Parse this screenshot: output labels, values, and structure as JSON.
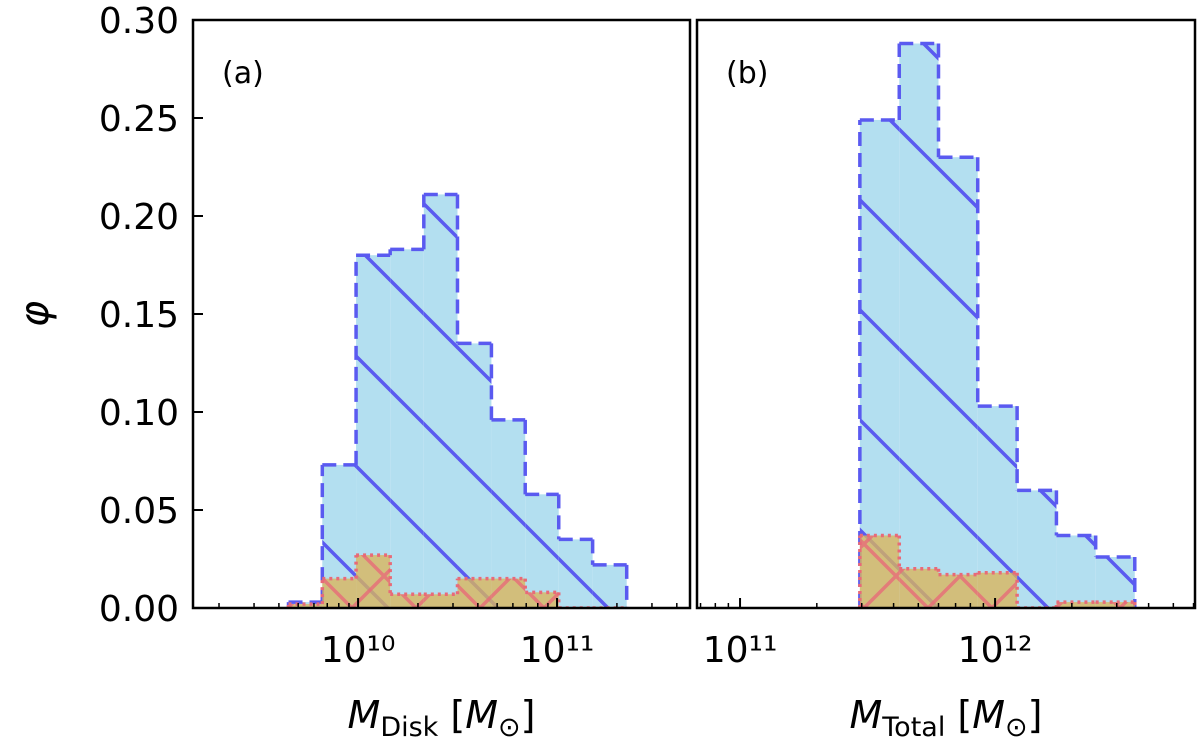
{
  "chart_data": [
    {
      "type": "histogram",
      "annotation": "(a)",
      "xlabel": [
        "M",
        "Disk",
        " [",
        "M",
        "⊙",
        "]"
      ],
      "ylabel": "φ",
      "xscale": "log",
      "xlim": [
        1480000000.0,
        466000000000.0
      ],
      "ylim": [
        0,
        0.3
      ],
      "yticks": [
        {
          "value": 0,
          "label": "0.00"
        },
        {
          "value": 0.05,
          "label": "0.05"
        },
        {
          "value": 0.1,
          "label": "0.10"
        },
        {
          "value": 0.15,
          "label": "0.15"
        },
        {
          "value": 0.2,
          "label": "0.20"
        },
        {
          "value": 0.25,
          "label": "0.25"
        },
        {
          "value": 0.3,
          "label": "0.30"
        }
      ],
      "xticks": [
        {
          "value": 10000000000.0,
          "label": "10¹⁰"
        },
        {
          "value": 100000000000.0,
          "label": "10¹¹"
        }
      ],
      "xminorticks": [
        2000000000.0,
        3000000000.0,
        4000000000.0,
        5000000000.0,
        6000000000.0,
        7000000000.0,
        8000000000.0,
        9000000000.0,
        20000000000.0,
        30000000000.0,
        40000000000.0,
        50000000000.0,
        60000000000.0,
        70000000000.0,
        80000000000.0,
        90000000000.0,
        200000000000.0,
        300000000000.0,
        400000000000.0
      ],
      "bins": [
        4470000000.0,
        6610000000.0,
        9770000000.0,
        14500000000.0,
        21400000000.0,
        31600000000.0,
        46800000000.0,
        69200000000.0,
        102000000000.0,
        151000000000.0,
        224000000000.0
      ],
      "series": [
        {
          "color": "#b3dff0",
          "edgecolor": "#5a5af0",
          "linestyle": "dashed",
          "hatch": "\\",
          "values": [
            0.003,
            0.073,
            0.18,
            0.183,
            0.211,
            0.135,
            0.096,
            0.058,
            0.035,
            0.022
          ]
        },
        {
          "color": "#dbb55a",
          "edgecolor": "#e86a78",
          "linestyle": "dotted",
          "hatch": "x",
          "values": [
            0.002,
            0.015,
            0.027,
            0.007,
            0.007,
            0.015,
            0.015,
            0.008,
            0,
            0
          ]
        }
      ]
    },
    {
      "type": "histogram",
      "annotation": "(b)",
      "xlabel": [
        "M",
        "Total",
        " [",
        "M",
        "⊙",
        "]"
      ],
      "xscale": "log",
      "xlim": [
        67800000000.0,
        6080000000000.0
      ],
      "ylim": [
        0,
        0.3
      ],
      "xticks": [
        {
          "value": 100000000000.0,
          "label": "10¹¹"
        },
        {
          "value": 1000000000000.0,
          "label": "10¹²"
        }
      ],
      "xminorticks": [
        70000000000.0,
        80000000000.0,
        90000000000.0,
        200000000000.0,
        300000000000.0,
        400000000000.0,
        500000000000.0,
        600000000000.0,
        700000000000.0,
        800000000000.0,
        900000000000.0,
        2000000000000.0,
        3000000000000.0,
        4000000000000.0,
        5000000000000.0,
        6000000000000.0
      ],
      "bins": [
        295000000000.0,
        421000000000.0,
        600000000000.0,
        855000000000.0,
        1220000000000.0,
        1740000000000.0,
        2480000000000.0,
        3530000000000.0
      ],
      "series": [
        {
          "color": "#b3dff0",
          "edgecolor": "#5a5af0",
          "linestyle": "dashed",
          "hatch": "\\",
          "values": [
            0.249,
            0.288,
            0.23,
            0.103,
            0.06,
            0.037,
            0.026
          ]
        },
        {
          "color": "#dbb55a",
          "edgecolor": "#e86a78",
          "linestyle": "dotted",
          "hatch": "x",
          "values": [
            0.037,
            0.02,
            0.017,
            0.018,
            0,
            0.003,
            0.003
          ]
        }
      ]
    }
  ]
}
